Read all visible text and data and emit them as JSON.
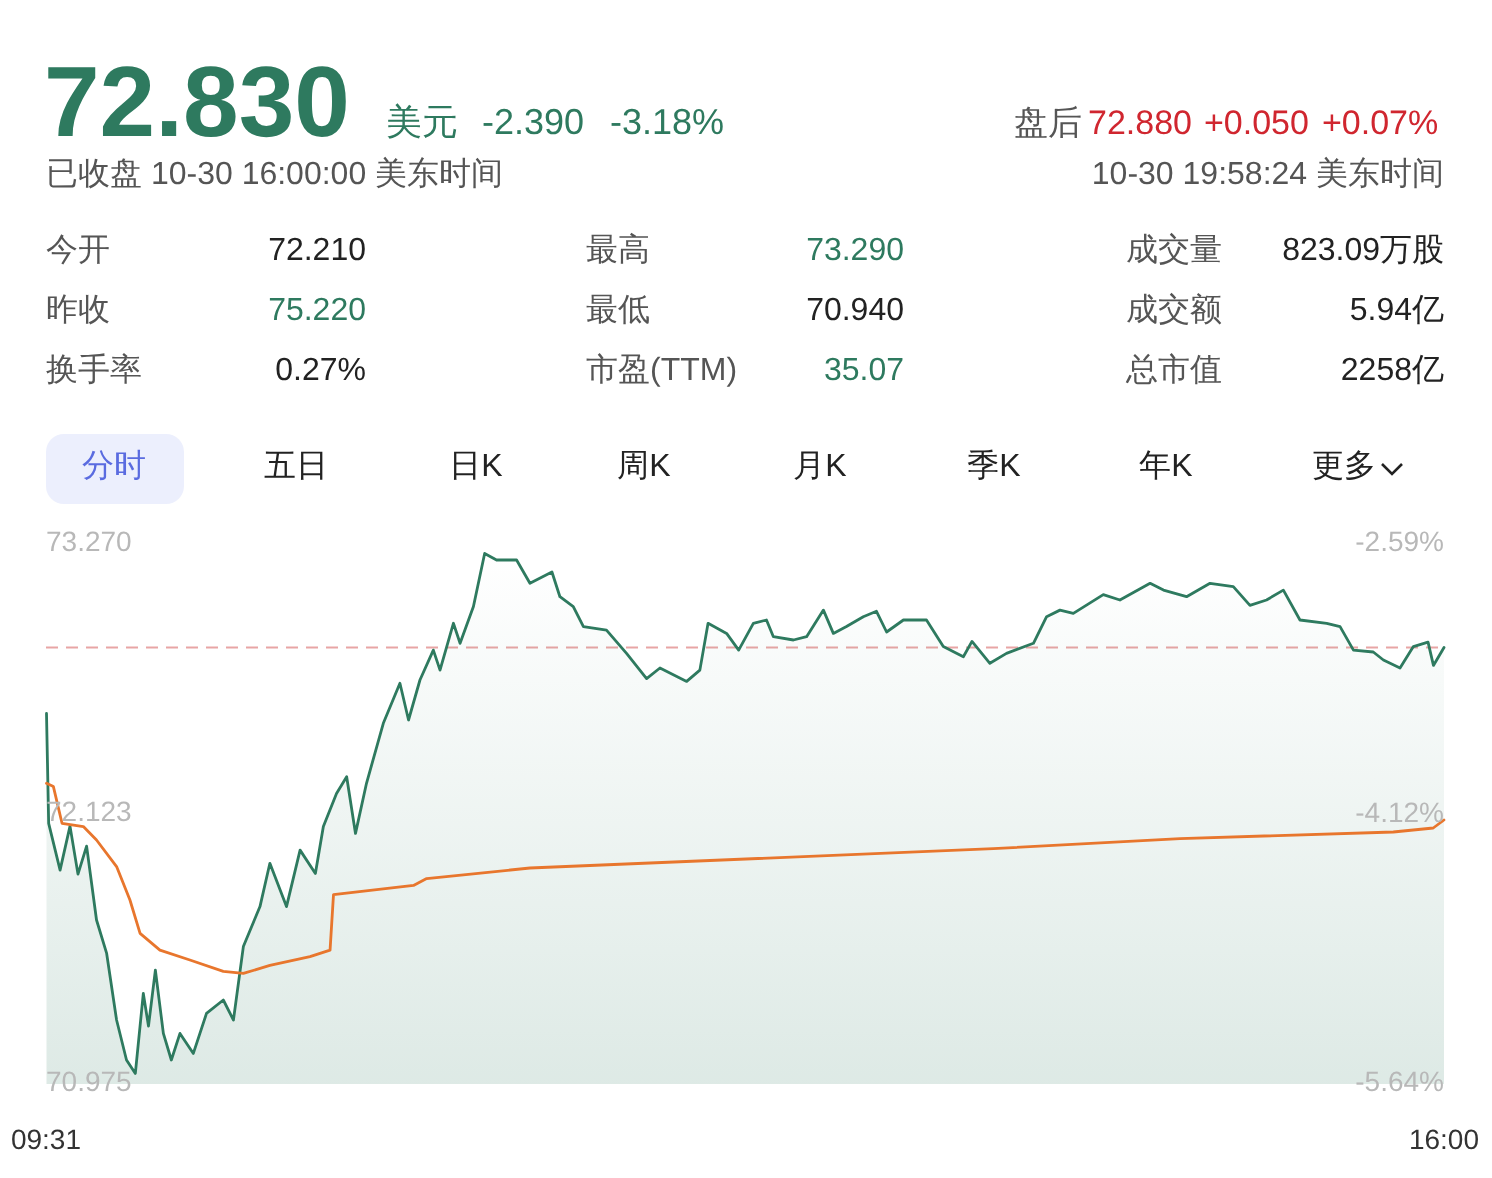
{
  "chart_data": [
    {
      "type": "other",
      "annotations": [
        "72.830",
        "美元",
        "-2.390",
        "-3.18%",
        "已收盘 10-30 16:00:00 美东时间",
        "盘后",
        "72.880",
        "+0.050",
        "+0.07%",
        "10-30 19:58:24 美东时间",
        "今开",
        "72.210",
        "最高",
        "73.290",
        "成交量",
        "823.09万股",
        "昨收",
        "75.220",
        "最低",
        "70.940",
        "成交额",
        "5.94亿",
        "换手率",
        "0.27%",
        "市盈(TTM)",
        "35.07",
        "总市值",
        "2258亿",
        "分时",
        "五日",
        "日K",
        "周K",
        "月K",
        "季K",
        "年K",
        "更多"
      ]
    },
    {
      "type": "line",
      "xlim": [
        9.5167,
        16
      ],
      "xticks": [
        {
          "value": 9.5167,
          "label": "09:31"
        },
        {
          "value": 16,
          "label": "16:00"
        }
      ],
      "ylim": [
        70.975,
        73.27
      ],
      "yticks": [
        {
          "value": 70.975,
          "label": "70.975"
        },
        {
          "value": 72.123,
          "label": "72.123"
        },
        {
          "value": 73.27,
          "label": "73.270"
        }
      ],
      "y2lim": [
        -5.64,
        -2.59
      ],
      "y2ticks": [
        {
          "value": -5.64,
          "label": "-5.64%"
        },
        {
          "value": -4.12,
          "label": "-4.12%"
        },
        {
          "value": -2.59,
          "label": "-2.59%"
        }
      ],
      "ref_lines": [
        {
          "axis": "y",
          "value": 72.83,
          "label": null,
          "color": "#e8a5a5",
          "line_style": "dashed"
        }
      ],
      "series": [
        {
          "type": "area",
          "color": "#2e7a5f",
          "x": [
            9.519,
            9.529,
            9.582,
            9.628,
            9.665,
            9.705,
            9.751,
            9.798,
            9.844,
            9.89,
            9.931,
            9.968,
            9.992,
            10.024,
            10.061,
            10.098,
            10.138,
            10.2,
            10.261,
            10.339,
            10.386,
            10.432,
            10.509,
            10.555,
            10.632,
            10.695,
            10.766,
            10.803,
            10.864,
            10.911,
            10.952,
            11.003,
            11.081,
            11.158,
            11.198,
            11.251,
            11.313,
            11.344,
            11.406,
            11.437,
            11.499,
            11.551,
            11.606,
            11.699,
            11.761,
            11.863,
            11.9,
            11.962,
            12.009,
            12.116,
            12.209,
            12.302,
            12.364,
            12.488,
            12.549,
            12.587,
            12.673,
            12.729,
            12.797,
            12.858,
            12.89,
            12.983,
            13.044,
            13.122,
            13.168,
            13.229,
            13.307,
            13.368,
            13.415,
            13.493,
            13.6,
            13.678,
            13.771,
            13.811,
            13.894,
            13.971,
            14.096,
            14.157,
            14.219,
            14.281,
            14.42,
            14.497,
            14.637,
            14.699,
            14.806,
            14.915,
            15.023,
            15.1,
            15.177,
            15.255,
            15.332,
            15.456,
            15.518,
            15.58,
            15.672,
            15.719,
            15.796,
            15.858,
            15.926,
            15.951,
            16.0
          ],
          "values": [
            72.55,
            72.083,
            71.884,
            72.071,
            71.867,
            71.986,
            71.672,
            71.53,
            71.247,
            71.077,
            71.02,
            71.36,
            71.221,
            71.459,
            71.19,
            71.077,
            71.19,
            71.105,
            71.275,
            71.332,
            71.247,
            71.559,
            71.729,
            71.913,
            71.729,
            71.969,
            71.87,
            72.069,
            72.21,
            72.281,
            72.04,
            72.253,
            72.508,
            72.678,
            72.522,
            72.692,
            72.819,
            72.734,
            72.933,
            72.848,
            73.004,
            73.23,
            73.202,
            73.202,
            73.103,
            73.151,
            73.046,
            73.004,
            72.919,
            72.904,
            72.805,
            72.698,
            72.743,
            72.686,
            72.734,
            72.933,
            72.89,
            72.819,
            72.933,
            72.947,
            72.876,
            72.862,
            72.876,
            72.989,
            72.89,
            72.919,
            72.961,
            72.984,
            72.896,
            72.947,
            72.947,
            72.834,
            72.791,
            72.856,
            72.763,
            72.805,
            72.848,
            72.961,
            72.989,
            72.975,
            73.055,
            73.032,
            73.103,
            73.074,
            73.046,
            73.103,
            73.089,
            73.009,
            73.032,
            73.074,
            72.947,
            72.933,
            72.919,
            72.819,
            72.811,
            72.777,
            72.743,
            72.834,
            72.853,
            72.754,
            72.83
          ]
        },
        {
          "type": "line",
          "color": "#e8762d",
          "x": [
            9.519,
            9.551,
            9.591,
            9.69,
            9.751,
            9.844,
            9.906,
            9.953,
            10.045,
            10.184,
            10.339,
            10.432,
            10.555,
            10.741,
            10.834,
            10.85,
            11.221,
            11.282,
            11.761,
            13.91,
            14.776,
            15.765,
            15.95,
            16.0
          ],
          "values": [
            72.253,
            72.239,
            72.083,
            72.069,
            72.012,
            71.899,
            71.757,
            71.615,
            71.544,
            71.502,
            71.454,
            71.445,
            71.479,
            71.516,
            71.544,
            71.78,
            71.819,
            71.848,
            71.893,
            71.975,
            72.018,
            72.046,
            72.063,
            72.097
          ]
        }
      ]
    }
  ]
}
